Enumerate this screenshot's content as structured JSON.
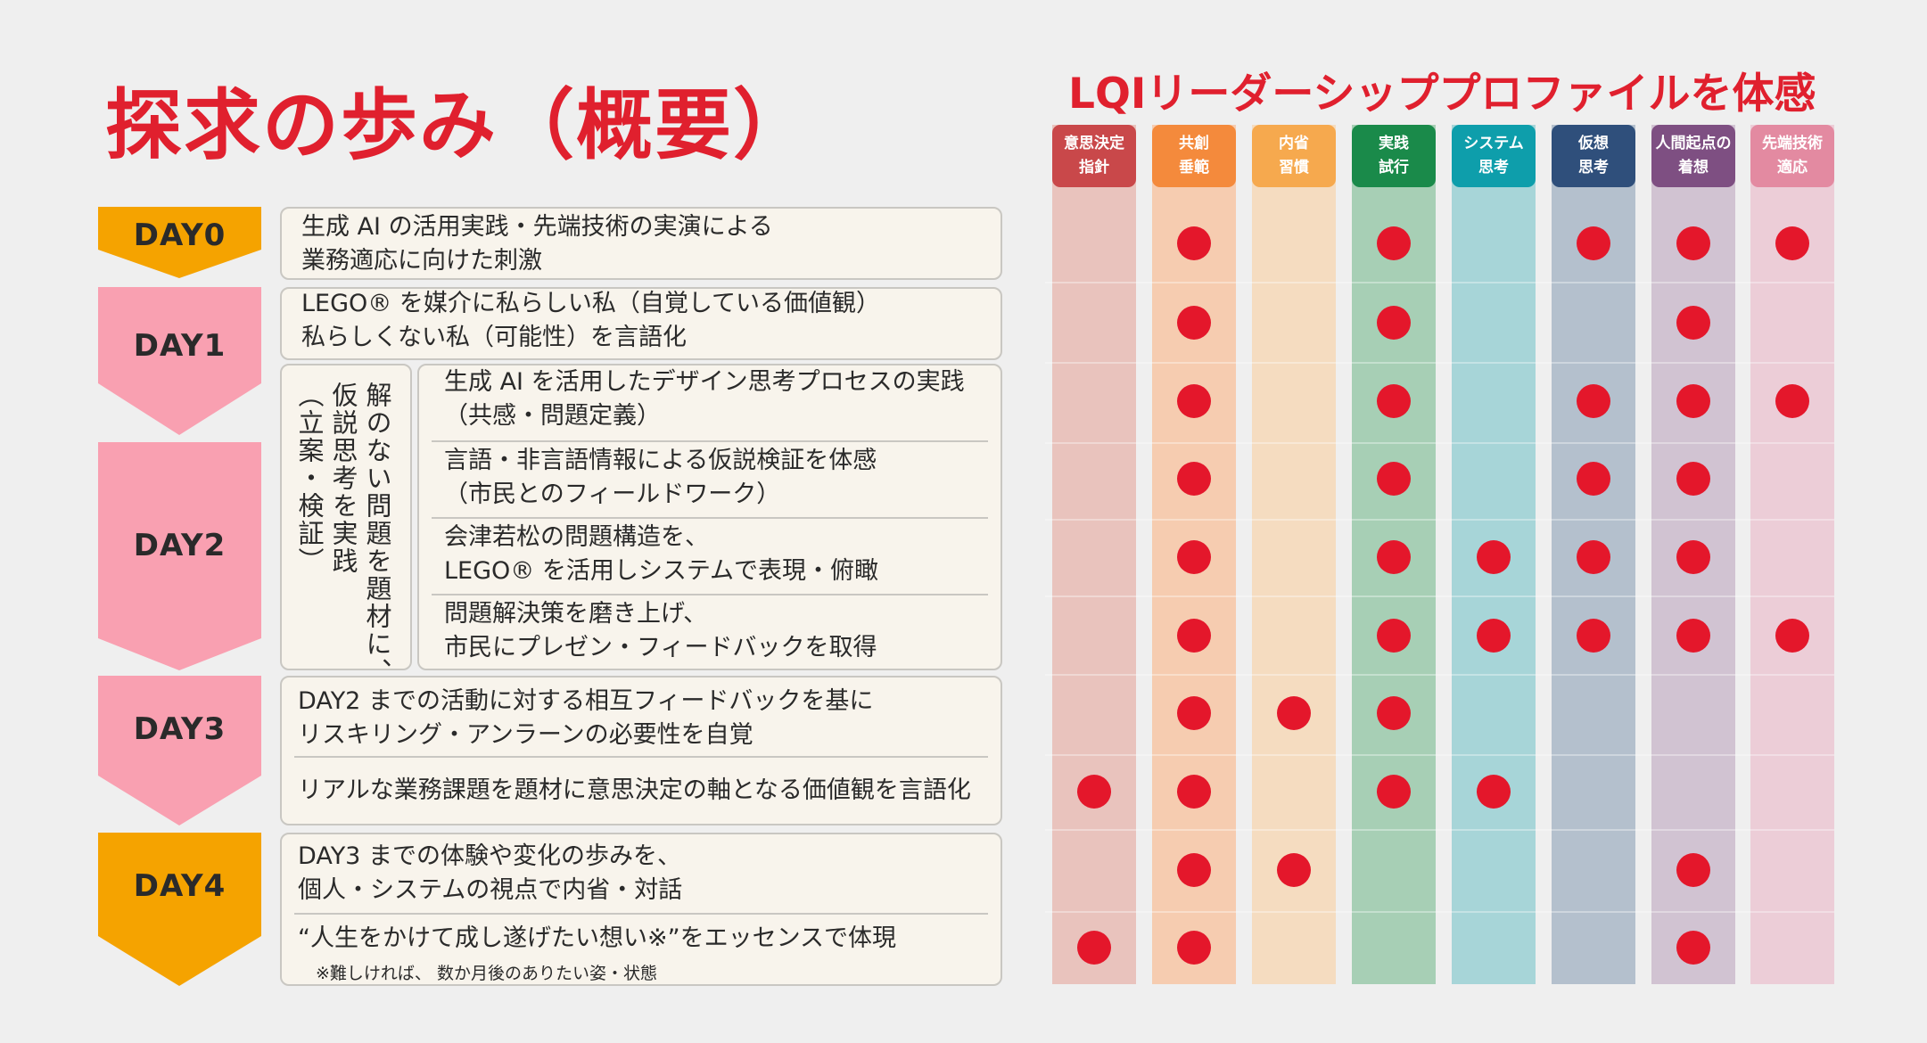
{
  "title": "探求の歩み（概要）",
  "lqi_title": "LQIリーダーシッププロファイルを体感",
  "columns": [
    {
      "label1": "意思決定",
      "label2": "指針",
      "head_color": "#c9484a",
      "bg_color": "#e9c3bd"
    },
    {
      "label1": "共創",
      "label2": "垂範",
      "head_color": "#f48a3c",
      "bg_color": "#f6ccb0"
    },
    {
      "label1": "内省",
      "label2": "習慣",
      "head_color": "#f6a94e",
      "bg_color": "#f5dcc0"
    },
    {
      "label1": "実践",
      "label2": "試行",
      "head_color": "#1a8a4a",
      "bg_color": "#a7cfb5"
    },
    {
      "label1": "システム",
      "label2": "思考",
      "head_color": "#0e9eab",
      "bg_color": "#a7d5d8"
    },
    {
      "label1": "仮想",
      "label2": "思考",
      "head_color": "#2f4f7b",
      "bg_color": "#b4c0cd"
    },
    {
      "label1": "人間起点の",
      "label2": "着想",
      "head_color": "#7e4f82",
      "bg_color": "#d1c3d2"
    },
    {
      "label1": "先端技術",
      "label2": "適応",
      "head_color": "#e38aa1",
      "bg_color": "#eccdd7"
    }
  ],
  "days": [
    {
      "label": "DAY0",
      "color": "#f5a300"
    },
    {
      "label": "DAY1",
      "color": "#f9a0b1"
    },
    {
      "label": "DAY2",
      "color": "#f9a0b1"
    },
    {
      "label": "DAY3",
      "color": "#f9a0b1"
    },
    {
      "label": "DAY4",
      "color": "#f5a300"
    }
  ],
  "day2_theme": {
    "col1": "解のない問題を題材に、",
    "col2": "仮説思考を実践",
    "col3": "（立案・検証）"
  },
  "rows": [
    {
      "line1": "生成 AI の活用実践・先端技術の実演による",
      "line2": "業務適応に向けた刺激",
      "dots": [
        0,
        1,
        0,
        1,
        0,
        1,
        1,
        1
      ]
    },
    {
      "line1": "LEGO® を媒介に私らしい私（自覚している価値観）",
      "line2": "私らしくない私（可能性）を言語化",
      "dots": [
        0,
        1,
        0,
        1,
        0,
        0,
        1,
        0
      ]
    },
    {
      "line1": "生成 AI を活用したデザイン思考プロセスの実践",
      "line2": "（共感・問題定義）",
      "dots": [
        0,
        1,
        0,
        1,
        0,
        1,
        1,
        1
      ]
    },
    {
      "line1": "言語・非言語情報による仮説検証を体感",
      "line2": "（市民とのフィールドワーク）",
      "dots": [
        0,
        1,
        0,
        1,
        0,
        1,
        1,
        0
      ]
    },
    {
      "line1": "会津若松の問題構造を、",
      "line2": "LEGO® を活用しシステムで表現・俯瞰",
      "dots": [
        0,
        1,
        0,
        1,
        1,
        1,
        1,
        0
      ]
    },
    {
      "line1": "問題解決策を磨き上げ、",
      "line2": "市民にプレゼン・フィードバックを取得",
      "dots": [
        0,
        1,
        0,
        1,
        1,
        1,
        1,
        1
      ]
    },
    {
      "line1": "DAY2 までの活動に対する相互フィードバックを基に",
      "line2": "リスキリング・アンラーンの必要性を自覚",
      "dots": [
        0,
        1,
        1,
        1,
        0,
        0,
        0,
        0
      ]
    },
    {
      "line1": "リアルな業務課題を題材に意思決定の軸となる価値観を言語化",
      "line2": "",
      "dots": [
        1,
        1,
        0,
        1,
        1,
        0,
        0,
        0
      ]
    },
    {
      "line1": "DAY3 までの体験や変化の歩みを、",
      "line2": "個人・システムの視点で内省・対話",
      "dots": [
        0,
        1,
        1,
        0,
        0,
        0,
        1,
        0
      ]
    },
    {
      "line1": "“人生をかけて成し遂げたい想い※”をエッセンスで体現",
      "line2": "",
      "dots": [
        1,
        1,
        0,
        0,
        0,
        0,
        1,
        0
      ]
    }
  ],
  "footnote": "※難しければ、 数か月後のありたい姿・状態"
}
